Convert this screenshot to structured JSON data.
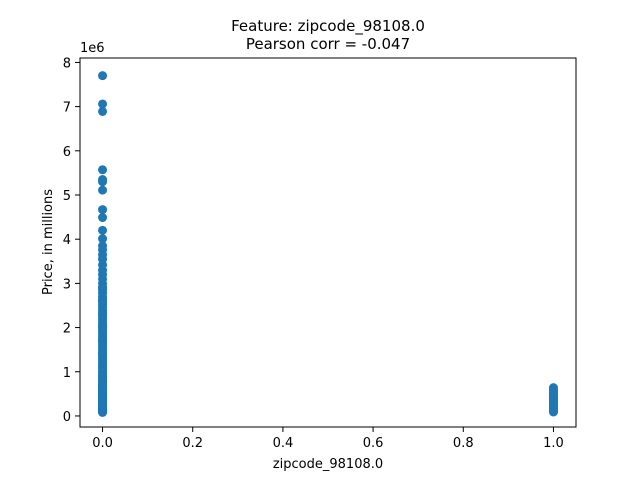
{
  "chart_data": {
    "type": "scatter",
    "title": "Feature: zipcode_98108.0",
    "subtitle": "Pearson corr = -0.047",
    "xlabel": "zipcode_98108.0",
    "ylabel": "Price, in millions",
    "y_offset_label": "1e6",
    "xlim": [
      -0.05,
      1.05
    ],
    "ylim": [
      -0.25,
      8.1
    ],
    "x_ticks": [
      0.0,
      0.2,
      0.4,
      0.6,
      0.8,
      1.0
    ],
    "x_tick_labels": [
      "0.0",
      "0.2",
      "0.4",
      "0.6",
      "0.8",
      "1.0"
    ],
    "y_ticks": [
      0,
      1,
      2,
      3,
      4,
      5,
      6,
      7,
      8
    ],
    "y_tick_labels": [
      "0",
      "1",
      "2",
      "3",
      "4",
      "5",
      "6",
      "7",
      "8"
    ],
    "grid": false,
    "marker_color": "#1f77b4",
    "series": [
      {
        "x": [
          0,
          0,
          0,
          0,
          0,
          0,
          0,
          0,
          0,
          0,
          0,
          0,
          0,
          0,
          0,
          0,
          0,
          0,
          0,
          0,
          0,
          0,
          0,
          0,
          0,
          0,
          0,
          0,
          0,
          0,
          0,
          0,
          0,
          0,
          0,
          0,
          0,
          0,
          0,
          0,
          0,
          0,
          0,
          0,
          0,
          0,
          0,
          0,
          0,
          0,
          0,
          0,
          0,
          0,
          0,
          0,
          0,
          0,
          0,
          0,
          0,
          0,
          0,
          0,
          0,
          0,
          0,
          0,
          0,
          0,
          0,
          0,
          0,
          0,
          0,
          0,
          0,
          0,
          0,
          0,
          0,
          0,
          0,
          0,
          0,
          0,
          0,
          0,
          0,
          0,
          0,
          0,
          0,
          0,
          0,
          0,
          0,
          0,
          0,
          0,
          0,
          0,
          0,
          0,
          0,
          0,
          0,
          0,
          0,
          0,
          0,
          0,
          0,
          0,
          0,
          1,
          1,
          1,
          1,
          1,
          1,
          1,
          1,
          1,
          1,
          1,
          1,
          1,
          1,
          1,
          1,
          1,
          1,
          1,
          1,
          1,
          1
        ],
        "y": [
          7.7,
          7.06,
          6.89,
          5.57,
          5.35,
          5.3,
          5.11,
          4.67,
          4.49,
          4.2,
          4.01,
          3.85,
          3.76,
          3.65,
          3.55,
          3.42,
          3.3,
          3.2,
          3.1,
          3.0,
          2.92,
          2.85,
          2.78,
          2.7,
          2.64,
          2.58,
          2.52,
          2.46,
          2.4,
          2.34,
          2.28,
          2.22,
          2.16,
          2.1,
          2.05,
          2.0,
          1.95,
          1.9,
          1.85,
          1.8,
          1.75,
          1.7,
          1.65,
          1.6,
          1.55,
          1.5,
          1.45,
          1.4,
          1.35,
          1.3,
          1.25,
          1.2,
          1.15,
          1.1,
          1.05,
          1.0,
          0.96,
          0.92,
          0.88,
          0.84,
          0.8,
          0.76,
          0.72,
          0.68,
          0.64,
          0.6,
          0.56,
          0.52,
          0.48,
          0.44,
          0.4,
          0.36,
          0.32,
          0.28,
          0.25,
          0.22,
          0.19,
          0.16,
          0.13,
          0.1,
          0.08,
          2.9,
          2.6,
          2.3,
          2.0,
          1.7,
          1.4,
          1.1,
          0.9,
          0.7,
          0.5,
          0.3,
          0.15,
          0.12,
          0.11,
          0.09,
          0.095,
          0.105,
          0.115,
          0.14,
          0.17,
          0.2,
          0.23,
          0.26,
          0.29,
          0.33,
          0.37,
          0.41,
          0.45,
          0.49,
          0.53,
          0.57,
          0.61,
          0.65,
          0.7,
          0.64,
          0.6,
          0.56,
          0.52,
          0.48,
          0.45,
          0.42,
          0.39,
          0.36,
          0.33,
          0.3,
          0.27,
          0.24,
          0.21,
          0.18,
          0.15,
          0.12,
          0.1,
          0.09,
          0.38,
          0.28,
          0.5
        ]
      }
    ]
  }
}
